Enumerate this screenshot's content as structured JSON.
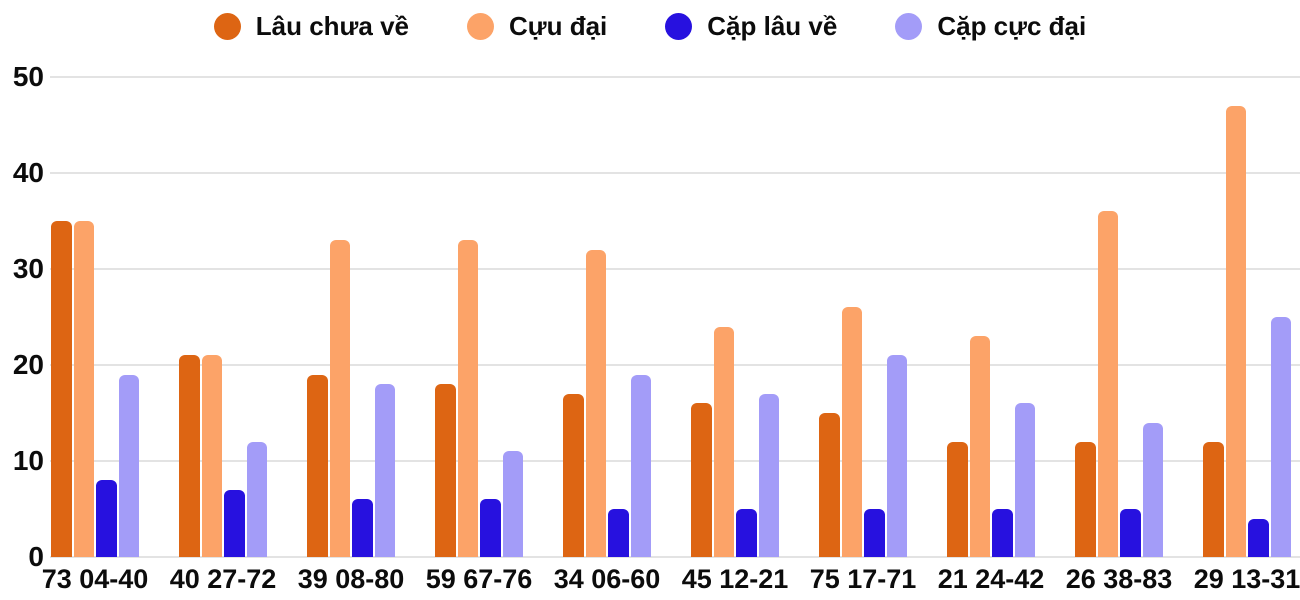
{
  "chart_data": {
    "type": "bar",
    "title": "",
    "xlabel": "",
    "ylabel": "",
    "categories": [
      "73 04-40",
      "40 27-72",
      "39 08-80",
      "59 67-76",
      "34 06-60",
      "45 12-21",
      "75 17-71",
      "21 24-42",
      "26 38-83",
      "29 13-31"
    ],
    "series": [
      {
        "name": "Lâu chưa về",
        "color": "#dd6513",
        "values": [
          35,
          21,
          19,
          18,
          17,
          16,
          15,
          12,
          12,
          12
        ]
      },
      {
        "name": "Cựu đại",
        "color": "#fca368",
        "values": [
          35,
          21,
          33,
          33,
          32,
          24,
          26,
          23,
          36,
          47
        ]
      },
      {
        "name": "Cặp lâu về",
        "color": "#2711df",
        "values": [
          8,
          7,
          6,
          6,
          5,
          5,
          5,
          5,
          5,
          4
        ]
      },
      {
        "name": "Cặp cực đại",
        "color": "#a39cf8",
        "values": [
          19,
          12,
          18,
          11,
          19,
          17,
          21,
          16,
          14,
          25
        ]
      }
    ],
    "ylim": [
      0,
      50
    ],
    "yticks": [
      0,
      10,
      20,
      30,
      40,
      50
    ],
    "grid": true,
    "legend_position": "top",
    "colors": {
      "text": "#0c0c0c",
      "gridline": "#e3e3e3",
      "background": "#ffffff"
    }
  }
}
